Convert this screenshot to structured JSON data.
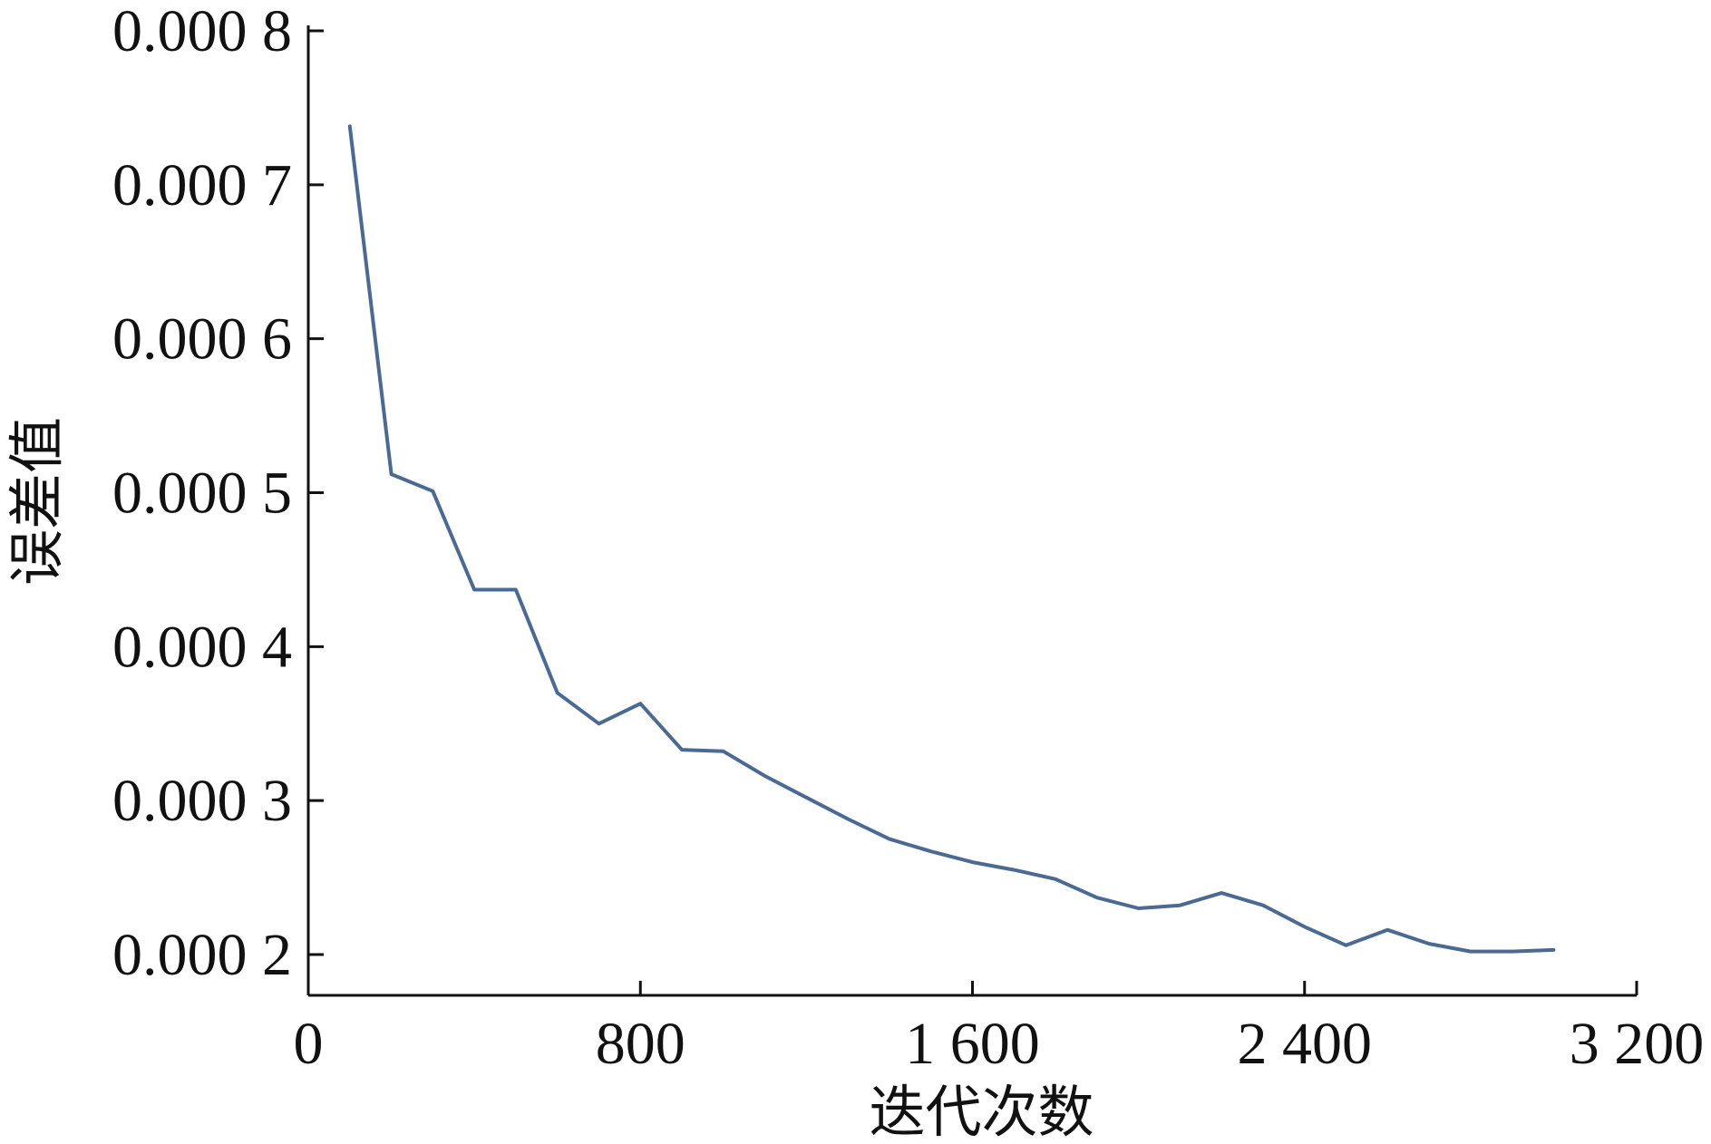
{
  "chart_data": {
    "type": "line",
    "xlabel": "迭代次数",
    "ylabel": "误差值",
    "xlim": [
      0,
      3200
    ],
    "ylim": [
      0.00017,
      0.0008
    ],
    "x_ticks": [
      0,
      800,
      1600,
      2400,
      3200
    ],
    "x_tick_labels": [
      "0",
      "800",
      "1 600",
      "2 400",
      "3 200"
    ],
    "y_ticks": [
      0.0002,
      0.0003,
      0.0004,
      0.0005,
      0.0006,
      0.0007,
      0.0008
    ],
    "y_tick_labels": [
      "0.000 2",
      "0.000 3",
      "0.000 4",
      "0.000 5",
      "0.000 6",
      "0.000 7",
      "0.000 8"
    ],
    "grid": false,
    "series": [
      {
        "color": "#4a6a94",
        "x": [
          100,
          200,
          300,
          400,
          500,
          600,
          700,
          800,
          900,
          1000,
          1100,
          1200,
          1300,
          1400,
          1500,
          1600,
          1700,
          1800,
          1900,
          2000,
          2100,
          2200,
          2300,
          2400,
          2500,
          2600,
          2700,
          2800,
          2900,
          3000
        ],
        "y": [
          0.000738,
          0.000512,
          0.000501,
          0.000437,
          0.000437,
          0.00037,
          0.00035,
          0.000363,
          0.000333,
          0.000332,
          0.000316,
          0.000302,
          0.000288,
          0.000275,
          0.000267,
          0.00026,
          0.000255,
          0.000249,
          0.000237,
          0.00023,
          0.000232,
          0.00024,
          0.000232,
          0.000218,
          0.000206,
          0.000216,
          0.000207,
          0.000202,
          0.000202,
          0.000203
        ]
      }
    ]
  }
}
